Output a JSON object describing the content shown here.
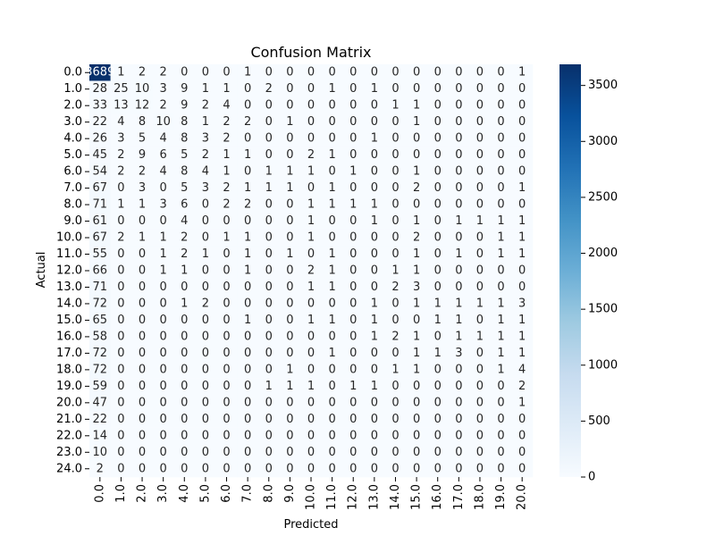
{
  "chart_data": {
    "type": "heatmap",
    "title": "Confusion Matrix",
    "xlabel": "Predicted",
    "ylabel": "Actual",
    "row_labels": [
      "0.0",
      "1.0",
      "2.0",
      "3.0",
      "4.0",
      "5.0",
      "6.0",
      "7.0",
      "8.0",
      "9.0",
      "10.0",
      "11.0",
      "12.0",
      "13.0",
      "14.0",
      "15.0",
      "16.0",
      "17.0",
      "18.0",
      "19.0",
      "20.0",
      "21.0",
      "22.0",
      "23.0",
      "24.0"
    ],
    "col_labels": [
      "0.0",
      "1.0",
      "2.0",
      "3.0",
      "4.0",
      "5.0",
      "6.0",
      "7.0",
      "8.0",
      "9.0",
      "10.0",
      "11.0",
      "12.0",
      "13.0",
      "14.0",
      "15.0",
      "16.0",
      "17.0",
      "18.0",
      "19.0",
      "20.0"
    ],
    "matrix": [
      [
        3689,
        1,
        2,
        2,
        0,
        0,
        0,
        1,
        0,
        0,
        0,
        0,
        0,
        0,
        0,
        0,
        0,
        0,
        0,
        0,
        1
      ],
      [
        28,
        25,
        10,
        3,
        9,
        1,
        1,
        0,
        2,
        0,
        0,
        1,
        0,
        1,
        0,
        0,
        0,
        0,
        0,
        0,
        0
      ],
      [
        33,
        13,
        12,
        2,
        9,
        2,
        4,
        0,
        0,
        0,
        0,
        0,
        0,
        0,
        1,
        1,
        0,
        0,
        0,
        0,
        0
      ],
      [
        22,
        4,
        8,
        10,
        8,
        1,
        2,
        2,
        0,
        1,
        0,
        0,
        0,
        0,
        0,
        1,
        0,
        0,
        0,
        0,
        0
      ],
      [
        26,
        3,
        5,
        4,
        8,
        3,
        2,
        0,
        0,
        0,
        0,
        0,
        0,
        1,
        0,
        0,
        0,
        0,
        0,
        0,
        0
      ],
      [
        45,
        2,
        9,
        6,
        5,
        2,
        1,
        1,
        0,
        0,
        2,
        1,
        0,
        0,
        0,
        0,
        0,
        0,
        0,
        0,
        0
      ],
      [
        54,
        2,
        2,
        4,
        8,
        4,
        1,
        0,
        1,
        1,
        1,
        0,
        1,
        0,
        0,
        1,
        0,
        0,
        0,
        0,
        0
      ],
      [
        67,
        0,
        3,
        0,
        5,
        3,
        2,
        1,
        1,
        1,
        0,
        1,
        0,
        0,
        0,
        2,
        0,
        0,
        0,
        0,
        1
      ],
      [
        71,
        1,
        1,
        3,
        6,
        0,
        2,
        2,
        0,
        0,
        1,
        1,
        1,
        1,
        0,
        0,
        0,
        0,
        0,
        0,
        0
      ],
      [
        61,
        0,
        0,
        0,
        4,
        0,
        0,
        0,
        0,
        0,
        1,
        0,
        0,
        1,
        0,
        1,
        0,
        1,
        1,
        1,
        1
      ],
      [
        67,
        2,
        1,
        1,
        2,
        0,
        1,
        1,
        0,
        0,
        1,
        0,
        0,
        0,
        0,
        2,
        0,
        0,
        0,
        1,
        1
      ],
      [
        55,
        0,
        0,
        1,
        2,
        1,
        0,
        1,
        0,
        1,
        0,
        1,
        0,
        0,
        0,
        1,
        0,
        1,
        0,
        1,
        1
      ],
      [
        66,
        0,
        0,
        1,
        1,
        0,
        0,
        1,
        0,
        0,
        2,
        1,
        0,
        0,
        1,
        1,
        0,
        0,
        0,
        0,
        0
      ],
      [
        71,
        0,
        0,
        0,
        0,
        0,
        0,
        0,
        0,
        0,
        1,
        1,
        0,
        0,
        2,
        3,
        0,
        0,
        0,
        0,
        0
      ],
      [
        72,
        0,
        0,
        0,
        1,
        2,
        0,
        0,
        0,
        0,
        0,
        0,
        0,
        1,
        0,
        1,
        1,
        1,
        1,
        1,
        3
      ],
      [
        65,
        0,
        0,
        0,
        0,
        0,
        0,
        1,
        0,
        0,
        1,
        1,
        0,
        1,
        0,
        0,
        1,
        1,
        0,
        1,
        1
      ],
      [
        58,
        0,
        0,
        0,
        0,
        0,
        0,
        0,
        0,
        0,
        0,
        0,
        0,
        1,
        2,
        1,
        0,
        1,
        1,
        1,
        1
      ],
      [
        72,
        0,
        0,
        0,
        0,
        0,
        0,
        0,
        0,
        0,
        0,
        1,
        0,
        0,
        0,
        1,
        1,
        3,
        0,
        1,
        1
      ],
      [
        72,
        0,
        0,
        0,
        0,
        0,
        0,
        0,
        0,
        1,
        0,
        0,
        0,
        0,
        1,
        1,
        0,
        0,
        0,
        1,
        4
      ],
      [
        59,
        0,
        0,
        0,
        0,
        0,
        0,
        0,
        1,
        1,
        1,
        0,
        1,
        1,
        0,
        0,
        0,
        0,
        0,
        0,
        2
      ],
      [
        47,
        0,
        0,
        0,
        0,
        0,
        0,
        0,
        0,
        0,
        0,
        0,
        0,
        0,
        0,
        0,
        0,
        0,
        0,
        0,
        1
      ],
      [
        22,
        0,
        0,
        0,
        0,
        0,
        0,
        0,
        0,
        0,
        0,
        0,
        0,
        0,
        0,
        0,
        0,
        0,
        0,
        0,
        0
      ],
      [
        14,
        0,
        0,
        0,
        0,
        0,
        0,
        0,
        0,
        0,
        0,
        0,
        0,
        0,
        0,
        0,
        0,
        0,
        0,
        0,
        0
      ],
      [
        10,
        0,
        0,
        0,
        0,
        0,
        0,
        0,
        0,
        0,
        0,
        0,
        0,
        0,
        0,
        0,
        0,
        0,
        0,
        0,
        0
      ],
      [
        2,
        0,
        0,
        0,
        0,
        0,
        0,
        0,
        0,
        0,
        0,
        0,
        0,
        0,
        0,
        0,
        0,
        0,
        0,
        0,
        0
      ]
    ],
    "value_range": [
      0,
      3689
    ],
    "colormap": "Blues",
    "colorbar_ticks": [
      0,
      500,
      1000,
      1500,
      2000,
      2500,
      3000,
      3500
    ],
    "grid": false,
    "annotated": true
  }
}
